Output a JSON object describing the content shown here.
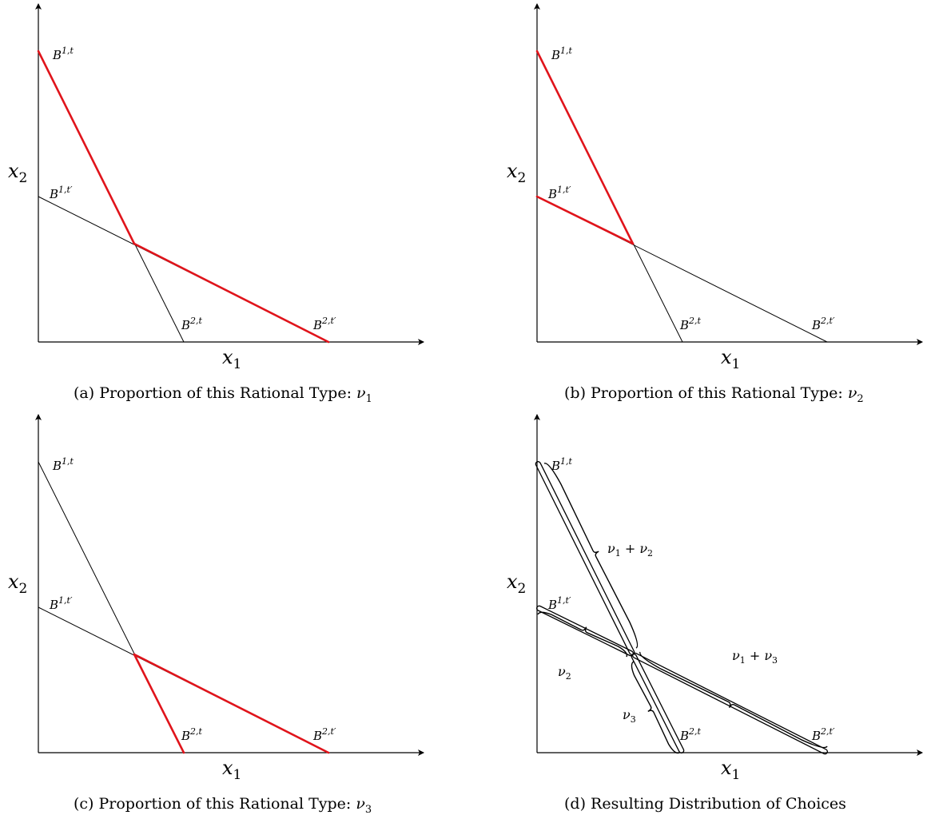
{
  "axis_labels": {
    "x": "x",
    "x_sub": "1",
    "y": "x",
    "y_sub": "2"
  },
  "points": {
    "b1t": {
      "base": "B",
      "sup": "1,t"
    },
    "b1tp": {
      "base": "B",
      "sup": "1,t′"
    },
    "b2t": {
      "base": "B",
      "sup": "2,t"
    },
    "b2tp": {
      "base": "B",
      "sup": "2,t′"
    }
  },
  "panels": [
    {
      "id": "a",
      "caption": "(a) Proportion of this Rational Type: ",
      "caption_var": "ν",
      "caption_sub": "1",
      "highlight": [
        "b1t_to_k",
        "k_to_b2tp"
      ]
    },
    {
      "id": "b",
      "caption": "(b) Proportion of this Rational Type: ",
      "caption_var": "ν",
      "caption_sub": "2",
      "highlight": [
        "b1t_to_k",
        "b1tp_to_k"
      ]
    },
    {
      "id": "c",
      "caption": "(c) Proportion of this Rational Type: ",
      "caption_var": "ν",
      "caption_sub": "3",
      "highlight": [
        "k_to_b2t",
        "k_to_b2tp"
      ]
    },
    {
      "id": "d",
      "caption": "(d) Resulting Distribution of Choices",
      "caption_var": "",
      "caption_sub": ""
    }
  ],
  "share_labels": {
    "upper_steep": {
      "v1": "ν",
      "s1": "1",
      "op": " + ",
      "v2": "ν",
      "s2": "2"
    },
    "upper_flat": {
      "v1": "ν",
      "s1": "2"
    },
    "lower_steep": {
      "v1": "ν",
      "s1": "3"
    },
    "lower_flat": {
      "v1": "ν",
      "s1": "1",
      "op": " + ",
      "v2": "ν",
      "s2": "3"
    }
  },
  "colors": {
    "highlight": "#e0141b",
    "line": "#000000"
  }
}
